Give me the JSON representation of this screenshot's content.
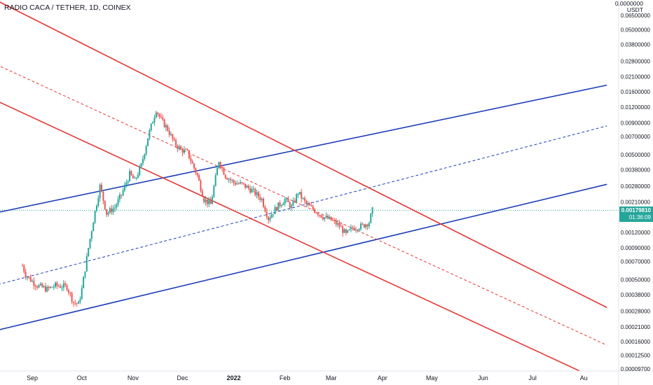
{
  "header": {
    "title": "RADIO CACA / TETHER, 1D, COINEX"
  },
  "axis": {
    "unit_line1": "0.0000000",
    "unit_line2": "USDT"
  },
  "price_badge": {
    "price": "0.00179810",
    "countdown": "01:36:09"
  },
  "colors": {
    "up": "#26a69a",
    "down": "#ef5350",
    "blue_channel": "#1e3fb8",
    "red_channel": "#e53935",
    "price_line": "#26a69a",
    "axis_bg": "#ffffff"
  },
  "chart_data": {
    "type": "candlestick",
    "title": "RADIO CACA / TETHER, 1D, COINEX",
    "scale": "log",
    "ylabel": "USDT",
    "y_ticks": [
      0.065,
      0.05,
      0.038,
      0.028,
      0.021,
      0.016,
      0.012,
      0.009,
      0.007,
      0.005,
      0.0038,
      0.0028,
      0.0021,
      0.0012,
      0.0009,
      0.0007,
      0.0005,
      0.00038,
      0.00028,
      0.00021,
      0.00016,
      0.000125,
      9.7e-05
    ],
    "y_tick_labels": [
      "0.06500000",
      "0.05000000",
      "0.03800000",
      "0.02800000",
      "0.02100000",
      "0.01600000",
      "0.01200000",
      "0.00900000",
      "0.00700000",
      "0.00500000",
      "0.00380000",
      "0.00280000",
      "0.00210000",
      "0.00120000",
      "0.00090000",
      "0.00070000",
      "0.00050000",
      "0.00038000",
      "0.00028000",
      "0.00021000",
      "0.00016000",
      "0.00012500",
      "0.00009700"
    ],
    "x_tick_labels": [
      "Sep",
      "Oct",
      "Nov",
      "Dec",
      "2022",
      "Feb",
      "Mar",
      "Apr",
      "May",
      "Jun",
      "Jul",
      "Au"
    ],
    "last_price": 0.0017981,
    "series": [
      {
        "name": "price",
        "kind": "close_path",
        "points": [
          [
            "2021-08-26",
            0.00065
          ],
          [
            "2021-08-28",
            0.00055
          ],
          [
            "2021-08-31",
            0.0005
          ],
          [
            "2021-09-04",
            0.00045
          ],
          [
            "2021-09-10",
            0.00042
          ],
          [
            "2021-09-15",
            0.00045
          ],
          [
            "2021-09-22",
            0.00044
          ],
          [
            "2021-09-26",
            0.00033
          ],
          [
            "2021-09-29",
            0.00032
          ],
          [
            "2021-10-01",
            0.00042
          ],
          [
            "2021-10-05",
            0.0009
          ],
          [
            "2021-10-08",
            0.0015
          ],
          [
            "2021-10-12",
            0.0028
          ],
          [
            "2021-10-16",
            0.0017
          ],
          [
            "2021-10-21",
            0.0019
          ],
          [
            "2021-10-25",
            0.0024
          ],
          [
            "2021-10-30",
            0.0035
          ],
          [
            "2021-11-02",
            0.0031
          ],
          [
            "2021-11-06",
            0.0041
          ],
          [
            "2021-11-10",
            0.0069
          ],
          [
            "2021-11-15",
            0.0115
          ],
          [
            "2021-11-18",
            0.0095
          ],
          [
            "2021-11-22",
            0.008
          ],
          [
            "2021-11-26",
            0.0062
          ],
          [
            "2021-11-30",
            0.0055
          ],
          [
            "2021-12-04",
            0.0052
          ],
          [
            "2021-12-07",
            0.0042
          ],
          [
            "2021-12-10",
            0.0034
          ],
          [
            "2021-12-14",
            0.0022
          ],
          [
            "2021-12-18",
            0.002
          ],
          [
            "2021-12-23",
            0.0045
          ],
          [
            "2021-12-27",
            0.0034
          ],
          [
            "2022-01-01",
            0.003
          ],
          [
            "2022-01-06",
            0.0029
          ],
          [
            "2022-01-12",
            0.0026
          ],
          [
            "2022-01-18",
            0.0022
          ],
          [
            "2022-01-22",
            0.00155
          ],
          [
            "2022-01-27",
            0.0019
          ],
          [
            "2022-02-01",
            0.0022
          ],
          [
            "2022-02-05",
            0.0019
          ],
          [
            "2022-02-09",
            0.0025
          ],
          [
            "2022-02-14",
            0.002
          ],
          [
            "2022-02-19",
            0.0018
          ],
          [
            "2022-02-24",
            0.0016
          ],
          [
            "2022-03-01",
            0.0015
          ],
          [
            "2022-03-06",
            0.00135
          ],
          [
            "2022-03-10",
            0.00115
          ],
          [
            "2022-03-14",
            0.0013
          ],
          [
            "2022-03-20",
            0.00135
          ],
          [
            "2022-03-24",
            0.00145
          ],
          [
            "2022-03-26",
            0.0017981
          ]
        ]
      },
      {
        "name": "blue_channel_upper",
        "kind": "trendline",
        "points": [
          [
            "2021-07-25",
            0.00155
          ],
          [
            "2022-08-15",
            0.018
          ]
        ]
      },
      {
        "name": "blue_channel_mid",
        "kind": "trendline_dashed",
        "points": [
          [
            "2021-07-25",
            0.0004
          ],
          [
            "2022-08-15",
            0.0085
          ]
        ]
      },
      {
        "name": "blue_channel_lower",
        "kind": "trendline",
        "points": [
          [
            "2021-07-25",
            0.000175
          ],
          [
            "2022-08-15",
            0.0029
          ]
        ]
      },
      {
        "name": "red_channel_upper",
        "kind": "trendline",
        "points": [
          [
            "2021-07-25",
            0.11
          ],
          [
            "2022-08-15",
            0.0003
          ]
        ]
      },
      {
        "name": "red_channel_mid",
        "kind": "trendline_dashed",
        "points": [
          [
            "2021-07-25",
            0.033
          ],
          [
            "2022-08-15",
            0.00015
          ]
        ]
      },
      {
        "name": "red_channel_lower",
        "kind": "trendline",
        "points": [
          [
            "2021-07-25",
            0.017
          ],
          [
            "2022-08-15",
            7.4e-05
          ]
        ]
      }
    ]
  }
}
